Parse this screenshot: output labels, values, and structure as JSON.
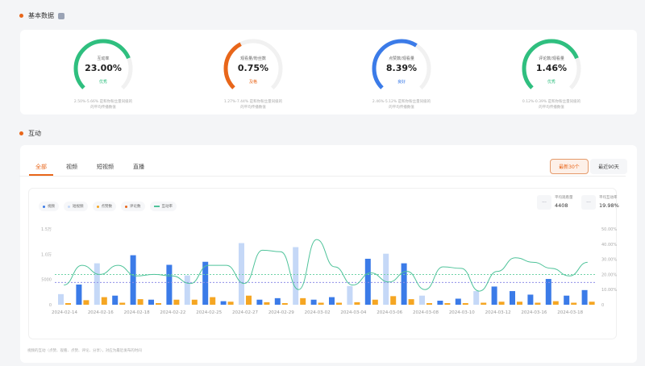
{
  "basic": {
    "title": "基本数据",
    "gauges": [
      {
        "label": "互动率",
        "value": "23.00%",
        "level": "优秀",
        "color": "#2fbf7f",
        "fill": 0.75,
        "desc1": "2.50%-5.66% 是和你粉丝量同级的",
        "desc2": "的平均传播数值"
      },
      {
        "label": "观看量/粉丝数",
        "value": "0.75%",
        "level": "及格",
        "color": "#e8661a",
        "fill": 0.4,
        "desc1": "1.27%-7.44% 是和你粉丝量同级的",
        "desc2": "的平均传播数值"
      },
      {
        "label": "点赞数/观看量",
        "value": "8.39%",
        "level": "良好",
        "color": "#3b7be8",
        "fill": 0.62,
        "desc1": "2.46%-5.12% 是和你粉丝量同级的",
        "desc2": "的平均传播数值"
      },
      {
        "label": "评论数/观看量",
        "value": "1.46%",
        "level": "优秀",
        "color": "#2fbf7f",
        "fill": 0.75,
        "desc1": "0.12%-0.39% 是和你粉丝量同级的",
        "desc2": "的平均传播数值"
      }
    ]
  },
  "interaction": {
    "title": "互动",
    "tabs": [
      "全部",
      "视频",
      "短视频",
      "直播"
    ],
    "buttons": {
      "latest": "最新30个",
      "days90": "最近90天"
    },
    "legend": [
      {
        "label": "视频",
        "color": "#3b7be8"
      },
      {
        "label": "短视频",
        "color": "#c5d8f7"
      },
      {
        "label": "点赞数",
        "color": "#f5a623"
      },
      {
        "label": "评论数",
        "color": "#e8661a"
      },
      {
        "label": "互动率",
        "color": "#4fc39a"
      }
    ],
    "stats": [
      {
        "label": "平均观看量",
        "value": "4408"
      },
      {
        "label": "平均互动率",
        "value": "19.98%"
      }
    ],
    "footer": "视频的互动（点赞、观看、点赞、评论、分享），对应为最近发布的时间"
  },
  "chart_data": {
    "type": "bar",
    "left_axis": {
      "ticks": [
        "0",
        "5000",
        "1.0万",
        "1.5万"
      ],
      "range": [
        0,
        15000
      ]
    },
    "right_axis": {
      "ticks": [
        "0",
        "10.00%",
        "20.00%",
        "30.00%",
        "40.00%",
        "50.00%"
      ],
      "range": [
        0,
        50
      ]
    },
    "x_labels": [
      "2024-02-14",
      "2024-02-16",
      "2024-02-18",
      "2024-02-22",
      "2024-02-25",
      "2024-02-27",
      "2024-02-29",
      "2024-03-02",
      "2024-03-04",
      "2024-03-06",
      "2024-03-08",
      "2024-03-10",
      "2024-03-12",
      "2024-03-16",
      "2024-03-18"
    ],
    "types": [
      "s",
      "v",
      "s",
      "v",
      "v",
      "v",
      "v",
      "s",
      "v",
      "v",
      "s",
      "v",
      "v",
      "s",
      "v",
      "v",
      "s",
      "v",
      "s",
      "v",
      "s",
      "v",
      "v",
      "s",
      "v",
      "v",
      "v",
      "v",
      "v",
      "v"
    ],
    "views": [
      2100,
      4000,
      8200,
      1800,
      9800,
      1000,
      7900,
      5800,
      8500,
      700,
      12200,
      1000,
      1300,
      11400,
      1000,
      1500,
      3700,
      9100,
      10100,
      8200,
      1800,
      800,
      1200,
      2700,
      3600,
      2700,
      2000,
      5100,
      1800,
      2900
    ],
    "likes": [
      300,
      900,
      1500,
      400,
      1100,
      300,
      1000,
      1000,
      1500,
      600,
      1800,
      500,
      300,
      1300,
      400,
      400,
      500,
      1000,
      1700,
      1100,
      300,
      300,
      300,
      400,
      600,
      600,
      400,
      700,
      400,
      600
    ],
    "rate": [
      13,
      26,
      20,
      26,
      19,
      20,
      19,
      14,
      26,
      26,
      14,
      36,
      35,
      10,
      43,
      25,
      13,
      21,
      15,
      22,
      10,
      25,
      24,
      9,
      22,
      31,
      28,
      24,
      19,
      28
    ],
    "avg_views": 4408,
    "avg_rate": 19.98
  }
}
